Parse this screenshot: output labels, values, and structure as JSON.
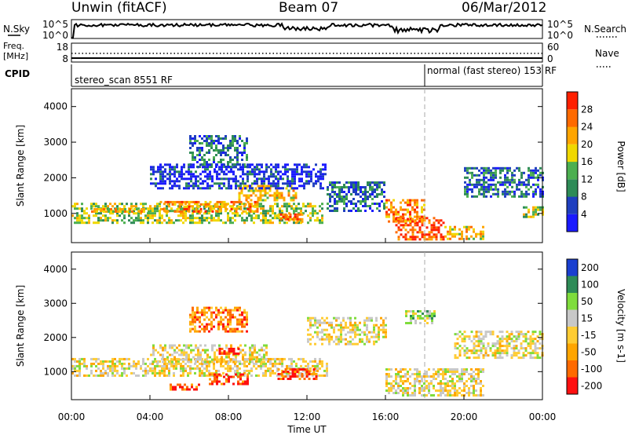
{
  "header": {
    "station": "Unwin (fitACF)",
    "beam": "Beam 07",
    "date": "06/Mar/2012"
  },
  "panels": {
    "nsky": {
      "left_label": "N.Sky",
      "right_label": "N.Search",
      "left_ticks": [
        "10^5",
        "10^0"
      ],
      "right_ticks": [
        "10^5",
        "10^0"
      ]
    },
    "freq": {
      "left_label_1": "Freq.",
      "left_label_2": "[MHz]",
      "right_label": "Nave",
      "left_ticks": [
        "18",
        "8"
      ],
      "right_ticks": [
        "60",
        "0"
      ]
    },
    "cpid": {
      "label": "CPID",
      "segments": [
        {
          "text": "stereo_scan 8551 RF",
          "start_hour": 0
        },
        {
          "text": "normal (fast stereo) 153 RF",
          "start_hour": 18
        }
      ]
    }
  },
  "colors": {
    "power_scale": [
      "#1a1aff",
      "#1f3fbf",
      "#2e8b57",
      "#4caf50",
      "#f0d800",
      "#ffa500",
      "#ff6a00",
      "#ff2000"
    ],
    "velocity_scale": [
      "#ff1010",
      "#ff6a00",
      "#ffa500",
      "#ffcc33",
      "#c8c8c8",
      "#7fdc3c",
      "#2e8b57",
      "#1a3fd0"
    ],
    "ground_scatter": "#c8c8c8"
  },
  "chart_data": [
    {
      "type": "heatmap",
      "name": "power",
      "ylabel": "Slant Range [km]",
      "colorbar_label": "Power [dB]",
      "colorbar_ticks": [
        "4",
        "8",
        "12",
        "16",
        "20",
        "24",
        "28"
      ],
      "xlim": [
        0,
        24
      ],
      "ylim": [
        180,
        4500
      ],
      "yticks": [
        1000,
        2000,
        3000,
        4000
      ],
      "x_ticks": [
        "00:00",
        "04:00",
        "08:00",
        "12:00",
        "16:00",
        "20:00",
        "00:00"
      ],
      "regions": [
        {
          "t0": 0.0,
          "t1": 12.8,
          "r0": 750,
          "r1": 1300,
          "p": 16
        },
        {
          "t0": 1.0,
          "t1": 4.0,
          "r0": 1050,
          "r1": 1150,
          "p": 20
        },
        {
          "t0": 4.5,
          "t1": 9.5,
          "r0": 1050,
          "r1": 1350,
          "p": 24
        },
        {
          "t0": 8.5,
          "t1": 11.5,
          "r0": 1350,
          "r1": 1800,
          "p": 20
        },
        {
          "t0": 10.5,
          "t1": 11.8,
          "r0": 800,
          "r1": 1000,
          "p": 24
        },
        {
          "t0": 6.0,
          "t1": 9.0,
          "r0": 2300,
          "r1": 3200,
          "p": 8
        },
        {
          "t0": 4.0,
          "t1": 13.0,
          "r0": 1700,
          "r1": 2400,
          "p": 4
        },
        {
          "t0": 13.0,
          "t1": 16.0,
          "r0": 1100,
          "r1": 1900,
          "p": 8
        },
        {
          "t0": 16.5,
          "t1": 19.0,
          "r0": 250,
          "r1": 900,
          "p": 28
        },
        {
          "t0": 16.0,
          "t1": 18.0,
          "r0": 800,
          "r1": 1400,
          "p": 24
        },
        {
          "t0": 19.0,
          "t1": 21.0,
          "r0": 300,
          "r1": 650,
          "p": 20
        },
        {
          "t0": 20.0,
          "t1": 24.0,
          "r0": 1500,
          "r1": 2300,
          "p": 8
        },
        {
          "t0": 23.0,
          "t1": 24.0,
          "r0": 900,
          "r1": 1200,
          "p": 16
        }
      ]
    },
    {
      "type": "heatmap",
      "name": "velocity",
      "ylabel": "Slant Range [km]",
      "colorbar_label": "Velocity [m s-1]",
      "colorbar_ticks": [
        "-200",
        "-100",
        "-50",
        "-15",
        "15",
        "50",
        "100",
        "200"
      ],
      "xlabel": "Time UT",
      "xlim": [
        0,
        24
      ],
      "ylim": [
        180,
        4500
      ],
      "yticks": [
        1000,
        2000,
        3000,
        4000
      ],
      "x_ticks": [
        "00:00",
        "04:00",
        "08:00",
        "12:00",
        "16:00",
        "20:00",
        "00:00"
      ],
      "regions": [
        {
          "t0": 0.0,
          "t1": 13.0,
          "r0": 900,
          "r1": 1400,
          "v": 0
        },
        {
          "t0": 4.0,
          "t1": 10.0,
          "r0": 1300,
          "r1": 1800,
          "v": 0
        },
        {
          "t0": 6.0,
          "t1": 9.0,
          "r0": 2200,
          "r1": 2900,
          "v": -50
        },
        {
          "t0": 7.5,
          "t1": 8.5,
          "r0": 1500,
          "r1": 1700,
          "v": -200
        },
        {
          "t0": 7.0,
          "t1": 9.0,
          "r0": 650,
          "r1": 950,
          "v": -100
        },
        {
          "t0": 10.5,
          "t1": 12.5,
          "r0": 800,
          "r1": 1100,
          "v": -100
        },
        {
          "t0": 5.0,
          "t1": 6.5,
          "r0": 450,
          "r1": 650,
          "v": -100
        },
        {
          "t0": 12.0,
          "t1": 16.0,
          "r0": 1800,
          "r1": 2600,
          "v": 0
        },
        {
          "t0": 16.0,
          "t1": 21.0,
          "r0": 300,
          "r1": 1100,
          "v": 0
        },
        {
          "t0": 19.5,
          "t1": 24.0,
          "r0": 1400,
          "r1": 2200,
          "v": 0
        },
        {
          "t0": 17.0,
          "t1": 18.5,
          "r0": 2400,
          "r1": 2800,
          "v": 50
        }
      ]
    }
  ]
}
